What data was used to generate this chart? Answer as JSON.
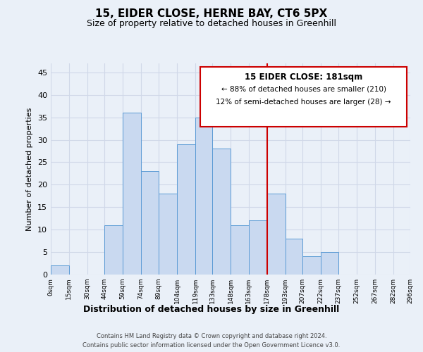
{
  "title": "15, EIDER CLOSE, HERNE BAY, CT6 5PX",
  "subtitle": "Size of property relative to detached houses in Greenhill",
  "xlabel": "Distribution of detached houses by size in Greenhill",
  "ylabel": "Number of detached properties",
  "bar_color": "#c9d9f0",
  "bar_edge_color": "#5b9bd5",
  "bin_edges": [
    0,
    15,
    30,
    44,
    59,
    74,
    89,
    104,
    119,
    133,
    148,
    163,
    178,
    193,
    207,
    222,
    237,
    252,
    267,
    282,
    296
  ],
  "bar_heights": [
    2,
    0,
    0,
    11,
    36,
    23,
    18,
    29,
    35,
    28,
    11,
    12,
    18,
    8,
    4,
    5,
    0,
    0,
    0,
    0
  ],
  "tick_labels": [
    "0sqm",
    "15sqm",
    "30sqm",
    "44sqm",
    "59sqm",
    "74sqm",
    "89sqm",
    "104sqm",
    "119sqm",
    "133sqm",
    "148sqm",
    "163sqm",
    "178sqm",
    "193sqm",
    "207sqm",
    "222sqm",
    "237sqm",
    "252sqm",
    "267sqm",
    "282sqm",
    "296sqm"
  ],
  "vline_x": 178,
  "vline_color": "#cc0000",
  "annotation_title": "15 EIDER CLOSE: 181sqm",
  "annotation_line1": "← 88% of detached houses are smaller (210)",
  "annotation_line2": "12% of semi-detached houses are larger (28) →",
  "annotation_box_color": "#ffffff",
  "annotation_box_edge_color": "#cc0000",
  "footer1": "Contains HM Land Registry data © Crown copyright and database right 2024.",
  "footer2": "Contains public sector information licensed under the Open Government Licence v3.0.",
  "ylim": [
    0,
    47
  ],
  "yticks": [
    0,
    5,
    10,
    15,
    20,
    25,
    30,
    35,
    40,
    45
  ],
  "grid_color": "#d0d8e8",
  "background_color": "#eaf0f8",
  "title_fontsize": 11,
  "subtitle_fontsize": 9
}
